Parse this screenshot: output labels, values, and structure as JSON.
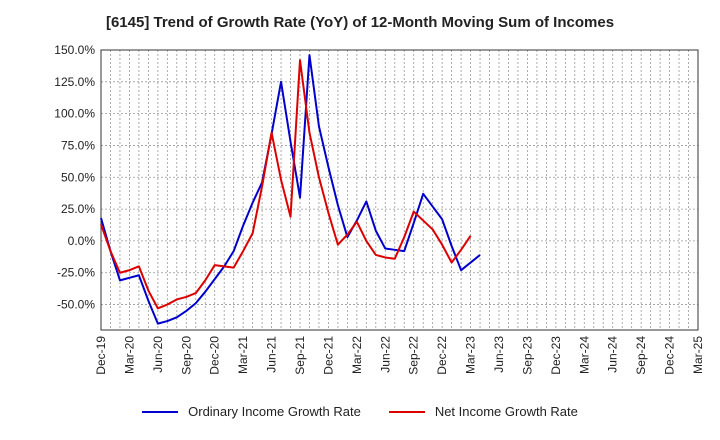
{
  "chart_data": {
    "type": "line",
    "title": "[6145]  Trend of Growth Rate (YoY) of 12-Month Moving Sum of Incomes",
    "xlabel": "",
    "ylabel": "",
    "ylim": [
      -70,
      150
    ],
    "yticks": [
      150,
      125,
      100,
      75,
      50,
      25,
      0,
      -25,
      -50
    ],
    "ytick_labels": [
      "150.0%",
      "125.0%",
      "100.0%",
      "75.0%",
      "50.0%",
      "25.0%",
      "0.0%",
      "-25.0%",
      "-50.0%"
    ],
    "x_tick_labels": [
      "Dec-19",
      "Mar-20",
      "Jun-20",
      "Sep-20",
      "Dec-20",
      "Mar-21",
      "Jun-21",
      "Sep-21",
      "Dec-21",
      "Mar-22",
      "Jun-22",
      "Sep-22",
      "Dec-22",
      "Mar-23",
      "Jun-23",
      "Sep-23",
      "Dec-23",
      "Mar-24",
      "Jun-24",
      "Sep-24",
      "Dec-24",
      "Mar-25"
    ],
    "grid": true,
    "legend_position": "bottom",
    "series": [
      {
        "name": "Ordinary Income Growth Rate",
        "color": "#0000cc",
        "values": [
          18,
          -8,
          -31,
          -29,
          -27,
          -47,
          -65,
          -63,
          -60,
          -55,
          -49,
          -40,
          -30,
          -20,
          -8,
          12,
          30,
          46,
          84,
          125,
          78,
          34,
          146,
          90,
          58,
          28,
          3,
          16,
          31,
          8,
          -6,
          -7,
          -8,
          14,
          37,
          27,
          17,
          -4,
          -23,
          -17,
          -11
        ]
      },
      {
        "name": "Net Income Growth Rate",
        "color": "#dd0000",
        "values": [
          13,
          -8,
          -25,
          -23,
          -20,
          -39,
          -53,
          -50,
          -46,
          -44,
          -41,
          -31,
          -19,
          -20,
          -21,
          -8,
          6,
          43,
          85,
          48,
          19,
          142,
          85,
          50,
          22,
          -3,
          5,
          15,
          0,
          -11,
          -13,
          -14,
          3,
          23,
          16,
          9,
          -3,
          -17,
          -7,
          4
        ]
      }
    ]
  }
}
